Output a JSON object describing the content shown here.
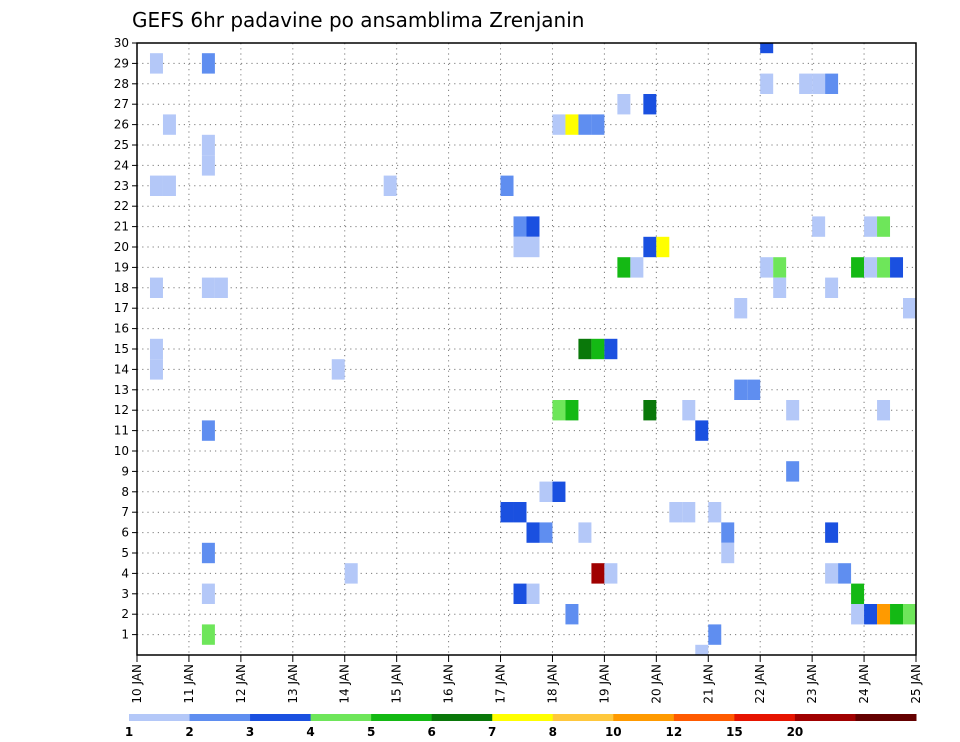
{
  "chart_data": {
    "type": "heatmap",
    "title": "GEFS 6hr padavine po ansamblima Zrenjanin",
    "xlabel": "",
    "ylabel": "",
    "x_tick_labels": [
      "10 JAN",
      "11 JAN",
      "12 JAN",
      "13 JAN",
      "14 JAN",
      "15 JAN",
      "16 JAN",
      "17 JAN",
      "18 JAN",
      "19 JAN",
      "20 JAN",
      "21 JAN",
      "22 JAN",
      "23 JAN",
      "24 JAN",
      "25 JAN"
    ],
    "x_range_days": [
      10,
      25
    ],
    "y_range": [
      0,
      30
    ],
    "y_ticks": [
      1,
      2,
      3,
      4,
      5,
      6,
      7,
      8,
      9,
      10,
      11,
      12,
      13,
      14,
      15,
      16,
      17,
      18,
      19,
      20,
      21,
      22,
      23,
      24,
      25,
      26,
      27,
      28,
      29,
      30
    ],
    "grid": true,
    "time_step_hours": 6,
    "colorbar": {
      "labels": [
        "1",
        "2",
        "3",
        "4",
        "5",
        "6",
        "7",
        "8",
        "10",
        "12",
        "15",
        "20"
      ],
      "colors": [
        "#b4c8f8",
        "#5f8ef0",
        "#1a50e0",
        "#6ee65a",
        "#14b914",
        "#0a780a",
        "#ffff00",
        "#ffc83c",
        "#ff9a00",
        "#ff5a00",
        "#e61400",
        "#a00000",
        "#640000"
      ]
    },
    "cells": [
      {
        "day": 10.25,
        "y": 29,
        "c": 0
      },
      {
        "day": 10.25,
        "y": 23,
        "c": 0
      },
      {
        "day": 10.5,
        "y": 23,
        "c": 0
      },
      {
        "day": 10.25,
        "y": 18,
        "c": 0
      },
      {
        "day": 10.25,
        "y": 15,
        "c": 0
      },
      {
        "day": 10.25,
        "y": 14,
        "c": 0
      },
      {
        "day": 10.5,
        "y": 26,
        "c": 0
      },
      {
        "day": 11.25,
        "y": 29,
        "c": 1
      },
      {
        "day": 11.25,
        "y": 25,
        "c": 0
      },
      {
        "day": 11.25,
        "y": 24,
        "c": 0
      },
      {
        "day": 11.25,
        "y": 18,
        "c": 0
      },
      {
        "day": 11.5,
        "y": 18,
        "c": 0
      },
      {
        "day": 11.25,
        "y": 11,
        "c": 1
      },
      {
        "day": 11.25,
        "y": 5,
        "c": 1
      },
      {
        "day": 11.25,
        "y": 3,
        "c": 0
      },
      {
        "day": 11.25,
        "y": 1,
        "c": 3
      },
      {
        "day": 13.75,
        "y": 14,
        "c": 0
      },
      {
        "day": 14,
        "y": 4,
        "c": 0
      },
      {
        "day": 14.75,
        "y": 23,
        "c": 0
      },
      {
        "day": 17,
        "y": 23,
        "c": 1
      },
      {
        "day": 17.25,
        "y": 21,
        "c": 1
      },
      {
        "day": 17.5,
        "y": 21,
        "c": 2
      },
      {
        "day": 17.25,
        "y": 20,
        "c": 0
      },
      {
        "day": 17.5,
        "y": 20,
        "c": 0
      },
      {
        "day": 17,
        "y": 7,
        "c": 2
      },
      {
        "day": 17.25,
        "y": 7,
        "c": 2
      },
      {
        "day": 17.5,
        "y": 6,
        "c": 2
      },
      {
        "day": 17.75,
        "y": 6,
        "c": 1
      },
      {
        "day": 17.25,
        "y": 3,
        "c": 2
      },
      {
        "day": 17.5,
        "y": 3,
        "c": 0
      },
      {
        "day": 17.75,
        "y": 8,
        "c": 0
      },
      {
        "day": 18,
        "y": 8,
        "c": 2
      },
      {
        "day": 18,
        "y": 26,
        "c": 0
      },
      {
        "day": 18.25,
        "y": 26,
        "c": 6
      },
      {
        "day": 18.5,
        "y": 26,
        "c": 1
      },
      {
        "day": 18.75,
        "y": 26,
        "c": 1
      },
      {
        "day": 18,
        "y": 12,
        "c": 3
      },
      {
        "day": 18.25,
        "y": 12,
        "c": 4
      },
      {
        "day": 18.5,
        "y": 15,
        "c": 5
      },
      {
        "day": 18.75,
        "y": 15,
        "c": 4
      },
      {
        "day": 19,
        "y": 15,
        "c": 2
      },
      {
        "day": 18.5,
        "y": 6,
        "c": 0
      },
      {
        "day": 18.25,
        "y": 2,
        "c": 1
      },
      {
        "day": 18.75,
        "y": 4,
        "c": 11
      },
      {
        "day": 19,
        "y": 4,
        "c": 0
      },
      {
        "day": 19.25,
        "y": 27,
        "c": 0
      },
      {
        "day": 19.25,
        "y": 19,
        "c": 4
      },
      {
        "day": 19.5,
        "y": 19,
        "c": 0
      },
      {
        "day": 19.75,
        "y": 27,
        "c": 2
      },
      {
        "day": 19.75,
        "y": 20,
        "c": 2
      },
      {
        "day": 20,
        "y": 20,
        "c": 6
      },
      {
        "day": 19.75,
        "y": 12,
        "c": 5
      },
      {
        "day": 20.25,
        "y": 7,
        "c": 0
      },
      {
        "day": 20.5,
        "y": 7,
        "c": 0
      },
      {
        "day": 20.5,
        "y": 12,
        "c": 0
      },
      {
        "day": 20.75,
        "y": 11,
        "c": 2
      },
      {
        "day": 20.75,
        "y": 0,
        "c": 0
      },
      {
        "day": 21,
        "y": 7,
        "c": 0
      },
      {
        "day": 21,
        "y": 1,
        "c": 1
      },
      {
        "day": 21.25,
        "y": 6,
        "c": 1
      },
      {
        "day": 21.25,
        "y": 5,
        "c": 0
      },
      {
        "day": 21.5,
        "y": 17,
        "c": 0
      },
      {
        "day": 21.5,
        "y": 13,
        "c": 1
      },
      {
        "day": 21.75,
        "y": 13,
        "c": 1
      },
      {
        "day": 22,
        "y": 30,
        "c": 2
      },
      {
        "day": 22,
        "y": 28,
        "c": 0
      },
      {
        "day": 22,
        "y": 19,
        "c": 0
      },
      {
        "day": 22.25,
        "y": 19,
        "c": 3
      },
      {
        "day": 22.25,
        "y": 18,
        "c": 0
      },
      {
        "day": 22.5,
        "y": 12,
        "c": 0
      },
      {
        "day": 22.5,
        "y": 9,
        "c": 1
      },
      {
        "day": 22.75,
        "y": 28,
        "c": 0
      },
      {
        "day": 23,
        "y": 28,
        "c": 0
      },
      {
        "day": 23.25,
        "y": 28,
        "c": 1
      },
      {
        "day": 23,
        "y": 21,
        "c": 0
      },
      {
        "day": 23.25,
        "y": 18,
        "c": 0
      },
      {
        "day": 23.25,
        "y": 6,
        "c": 2
      },
      {
        "day": 23.25,
        "y": 4,
        "c": 0
      },
      {
        "day": 23.5,
        "y": 4,
        "c": 1
      },
      {
        "day": 23.75,
        "y": 19,
        "c": 4
      },
      {
        "day": 23.75,
        "y": 3,
        "c": 4
      },
      {
        "day": 23.75,
        "y": 2,
        "c": 0
      },
      {
        "day": 24,
        "y": 21,
        "c": 0
      },
      {
        "day": 24.25,
        "y": 21,
        "c": 3
      },
      {
        "day": 24,
        "y": 19,
        "c": 0
      },
      {
        "day": 24.25,
        "y": 19,
        "c": 3
      },
      {
        "day": 24.5,
        "y": 19,
        "c": 2
      },
      {
        "day": 24.25,
        "y": 12,
        "c": 0
      },
      {
        "day": 24,
        "y": 2,
        "c": 2
      },
      {
        "day": 24.25,
        "y": 2,
        "c": 8
      },
      {
        "day": 24.5,
        "y": 2,
        "c": 4
      },
      {
        "day": 24.75,
        "y": 2,
        "c": 3
      },
      {
        "day": 24.75,
        "y": 17,
        "c": 0
      }
    ]
  }
}
